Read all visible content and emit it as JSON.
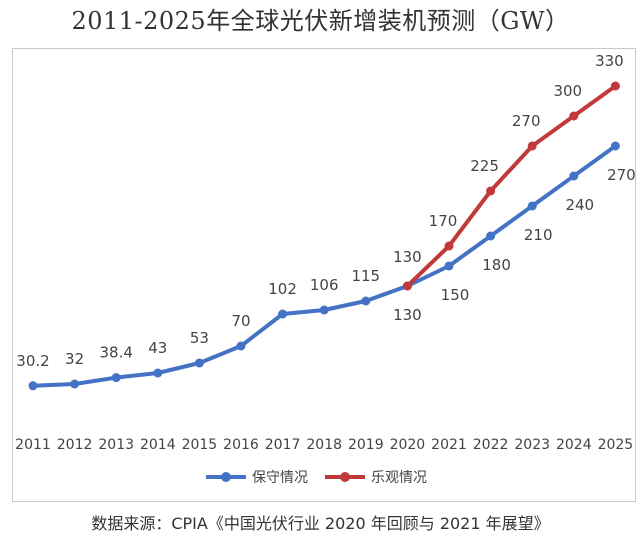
{
  "title": "2011-2025年全球光伏新增装机预测（GW）",
  "source": "数据来源：CPIA《中国光伏行业 2020 年回顾与 2021 年展望》",
  "chart_data": {
    "type": "line",
    "title": "2011-2025年全球光伏新增装机预测（GW）",
    "xlabel": "",
    "ylabel": "",
    "grid": false,
    "legend": "bottom",
    "categories": [
      "2011",
      "2012",
      "2013",
      "2014",
      "2015",
      "2016",
      "2017",
      "2018",
      "2019",
      "2020",
      "2021",
      "2022",
      "2023",
      "2024",
      "2025"
    ],
    "ylim": [
      0,
      350
    ],
    "series": [
      {
        "name": "保守情况",
        "color": "#4472c4",
        "values": [
          30.2,
          32,
          38.4,
          43,
          53,
          70,
          102,
          106,
          115,
          130,
          150,
          180,
          210,
          240,
          270
        ],
        "labels": [
          "30.2",
          "32",
          "38.4",
          "43",
          "53",
          "70",
          "102",
          "106",
          "115",
          "130",
          "150",
          "180",
          "210",
          "240",
          "270"
        ]
      },
      {
        "name": "乐观情况",
        "color": "#c0393b",
        "start_index": 9,
        "values": [
          null,
          null,
          null,
          null,
          null,
          null,
          null,
          null,
          null,
          130,
          170,
          225,
          270,
          300,
          330
        ],
        "labels": [
          "",
          "",
          "",
          "",
          "",
          "",
          "",
          "",
          "",
          "130",
          "170",
          "225",
          "270",
          "300",
          "330"
        ]
      }
    ]
  }
}
